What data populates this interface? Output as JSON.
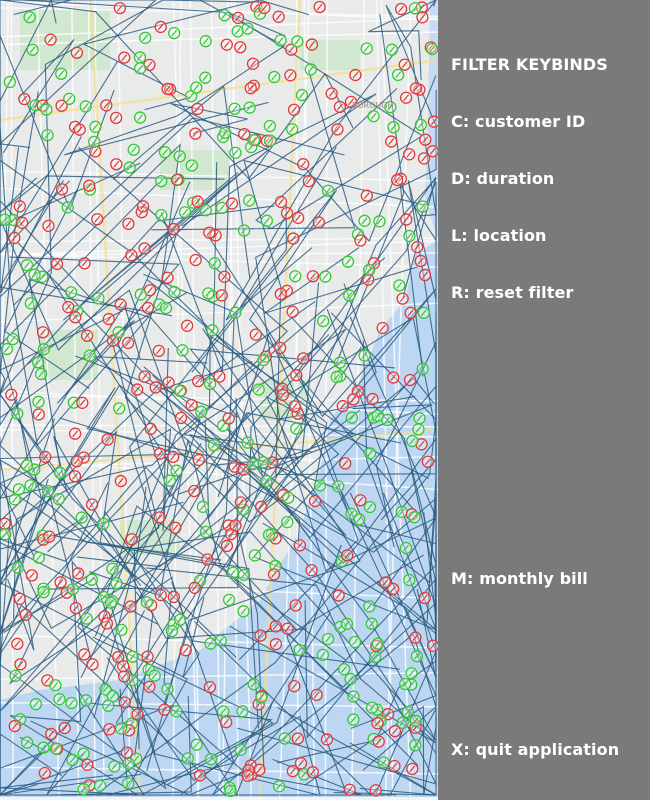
{
  "map": {
    "land_color": "#e9eaea",
    "water_color": "#bdd7f2",
    "park_color": "#c8e6c4",
    "route_color": "#2a5b80",
    "pickup_marker_color": "#34c934",
    "dropoff_marker_color": "#e03a3a",
    "labels": [
      "BOROUGH"
    ]
  },
  "panel": {
    "background": "#7a7a7a",
    "title": "FILTER KEYBINDS",
    "customer": "C: customer ID",
    "duration": "D: duration",
    "location": "L: location",
    "reset": "R: reset filter",
    "monthly": "M: monthly bill",
    "quit": "X: quit application"
  }
}
